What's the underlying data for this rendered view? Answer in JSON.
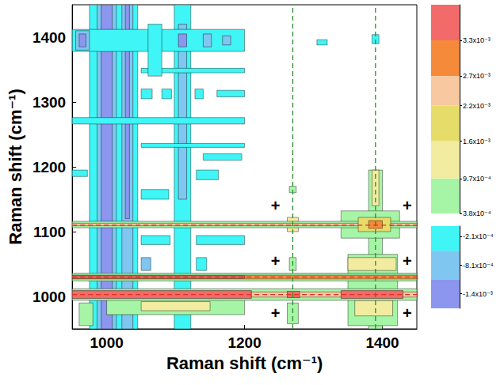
{
  "chart_data": {
    "type": "contour",
    "x_label": "Raman shift (cm⁻¹)",
    "y_label": "Raman shift (cm⁻¹)",
    "xlim": [
      950,
      1450
    ],
    "xticks": [
      1000,
      1200,
      1400
    ],
    "ylim": [
      950,
      1450
    ],
    "yticks": [
      1000,
      1100,
      1200,
      1300,
      1400
    ],
    "cells": [
      [
        975,
        1045,
        950,
        1450,
        -0.0003
      ],
      [
        986,
        1014,
        950,
        1450,
        -0.0008
      ],
      [
        992,
        1008,
        950,
        1450,
        -0.0015
      ],
      [
        1022,
        1038,
        950,
        1450,
        -0.0008
      ],
      [
        1027,
        1033,
        1120,
        1450,
        -0.0015
      ],
      [
        1098,
        1122,
        950,
        1450,
        -0.0003
      ],
      [
        1104,
        1116,
        1150,
        1420,
        -0.0008
      ],
      [
        950,
        1200,
        1378,
        1412,
        -0.0003
      ],
      [
        955,
        975,
        1380,
        1410,
        -0.0008
      ],
      [
        960,
        970,
        1385,
        1405,
        -0.0015
      ],
      [
        1104,
        1116,
        1385,
        1405,
        -0.0015
      ],
      [
        1140,
        1152,
        1385,
        1405,
        -0.0008
      ],
      [
        1168,
        1180,
        1388,
        1402,
        -0.0008
      ],
      [
        950,
        1200,
        1266,
        1276,
        -0.0003
      ],
      [
        1050,
        1200,
        1345,
        1352,
        -0.0003
      ],
      [
        1050,
        1066,
        1305,
        1320,
        -0.0003
      ],
      [
        1080,
        1094,
        1305,
        1320,
        -0.0003
      ],
      [
        1128,
        1140,
        1305,
        1320,
        -0.0003
      ],
      [
        1160,
        1200,
        1308,
        1318,
        -0.0003
      ],
      [
        1050,
        1092,
        1080,
        1094,
        -0.0003
      ],
      [
        1130,
        1200,
        1080,
        1094,
        -0.0003
      ],
      [
        950,
        972,
        1185,
        1195,
        -0.0003
      ],
      [
        1050,
        1090,
        1150,
        1165,
        -0.0003
      ],
      [
        1130,
        1162,
        1180,
        1195,
        -0.0003
      ],
      [
        1140,
        1196,
        1210,
        1220,
        -0.0003
      ],
      [
        1050,
        1200,
        1230,
        1236,
        -0.0003
      ],
      [
        1050,
        1064,
        1040,
        1060,
        -0.0008
      ],
      [
        1130,
        1145,
        1040,
        1060,
        -0.0003
      ],
      [
        1060,
        1080,
        1340,
        1420,
        -0.0003
      ],
      [
        1305,
        1320,
        1388,
        1396,
        -0.0003
      ],
      [
        1385,
        1395,
        1390,
        1404,
        -0.0003
      ],
      [
        1380,
        1400,
        950,
        1195,
        0.0006
      ],
      [
        1350,
        1422,
        955,
        1065,
        0.0006
      ],
      [
        1340,
        1425,
        1090,
        1132,
        0.0006
      ],
      [
        1360,
        1415,
        970,
        994,
        0.0012
      ],
      [
        1350,
        1420,
        1040,
        1060,
        0.0012
      ],
      [
        1385,
        1395,
        1140,
        1195,
        0.0012
      ],
      [
        1265,
        1275,
        1160,
        1170,
        0.0006
      ],
      [
        1262,
        1278,
        1100,
        1122,
        0.0012
      ],
      [
        1265,
        1275,
        1040,
        1060,
        0.0006
      ],
      [
        1262,
        1278,
        958,
        990,
        0.0006
      ],
      [
        1000,
        1200,
        972,
        995,
        0.0006
      ],
      [
        1050,
        1150,
        978,
        992,
        0.0012
      ],
      [
        960,
        980,
        955,
        990,
        0.0006
      ],
      [
        950,
        1450,
        994,
        1012,
        0.0006
      ],
      [
        950,
        1210,
        997,
        1009,
        0.0035
      ],
      [
        1210,
        1450,
        999,
        1007,
        0.0024
      ],
      [
        950,
        1450,
        1024,
        1036,
        0.0006
      ],
      [
        950,
        1450,
        1027,
        1033,
        0.003
      ],
      [
        950,
        1200,
        1028,
        1032,
        0.0035
      ],
      [
        950,
        1450,
        1106,
        1116,
        0.0006
      ],
      [
        950,
        1450,
        1109,
        1113,
        0.0024
      ],
      [
        1262,
        1280,
        998,
        1008,
        0.0035
      ],
      [
        1340,
        1430,
        997,
        1009,
        0.0035
      ],
      [
        1365,
        1412,
        1100,
        1122,
        0.0019
      ],
      [
        1380,
        1400,
        1105,
        1117,
        0.003
      ]
    ],
    "colorbars": [
      {
        "ylim": [
          0.00038,
          0.0039
        ],
        "ticks": [
          {
            "value": 0.00038,
            "label": "3.8x10⁻⁴"
          },
          {
            "value": 0.00097,
            "label": "9.7x10⁻⁴"
          },
          {
            "value": 0.0016,
            "label": "1.6x10⁻³"
          },
          {
            "value": 0.0022,
            "label": "2.2x10⁻³"
          },
          {
            "value": 0.0027,
            "label": "2.7x10⁻³"
          },
          {
            "value": 0.0033,
            "label": "3.3x10⁻³"
          }
        ],
        "bands": [
          {
            "from": 0.00038,
            "to": 0.00097,
            "color": "#a6f5a6"
          },
          {
            "from": 0.00097,
            "to": 0.0016,
            "color": "#f2eca0"
          },
          {
            "from": 0.0016,
            "to": 0.0022,
            "color": "#e6dc6a"
          },
          {
            "from": 0.0022,
            "to": 0.0027,
            "color": "#f8c8a0"
          },
          {
            "from": 0.0027,
            "to": 0.0033,
            "color": "#f58a3a"
          },
          {
            "from": 0.0033,
            "to": 0.0039,
            "color": "#f26a6a"
          }
        ]
      },
      {
        "ylim": [
          -0.0017,
          0
        ],
        "ticks": [
          {
            "value": -0.00021,
            "label": "-2.1x10⁻⁴"
          },
          {
            "value": -0.00081,
            "label": "-8.1x10⁻⁴"
          },
          {
            "value": -0.0014,
            "label": "-1.4x10⁻³"
          }
        ],
        "bands": [
          {
            "from": -0.00051,
            "to": 0,
            "color": "#3ff5f5"
          },
          {
            "from": -0.00111,
            "to": -0.00051,
            "color": "#7fc6f0"
          },
          {
            "from": -0.0017,
            "to": -0.00111,
            "color": "#8c96ef"
          }
        ]
      }
    ],
    "vlines": {
      "values": [
        1270,
        1390
      ],
      "color": "#2e8b2e",
      "line_style": "dashed"
    },
    "hlines": {
      "values": [
        1003,
        1030,
        1110
      ],
      "color": "#e03020",
      "line_style": "dashed"
    },
    "annotations": [
      {
        "text": "+",
        "x": 1245,
        "y": 1140
      },
      {
        "text": "+",
        "x": 1436,
        "y": 1140
      },
      {
        "text": "+",
        "x": 1245,
        "y": 1055
      },
      {
        "text": "+",
        "x": 1436,
        "y": 1055
      },
      {
        "text": "+",
        "x": 1245,
        "y": 975
      },
      {
        "text": "+",
        "x": 1436,
        "y": 975
      }
    ]
  }
}
